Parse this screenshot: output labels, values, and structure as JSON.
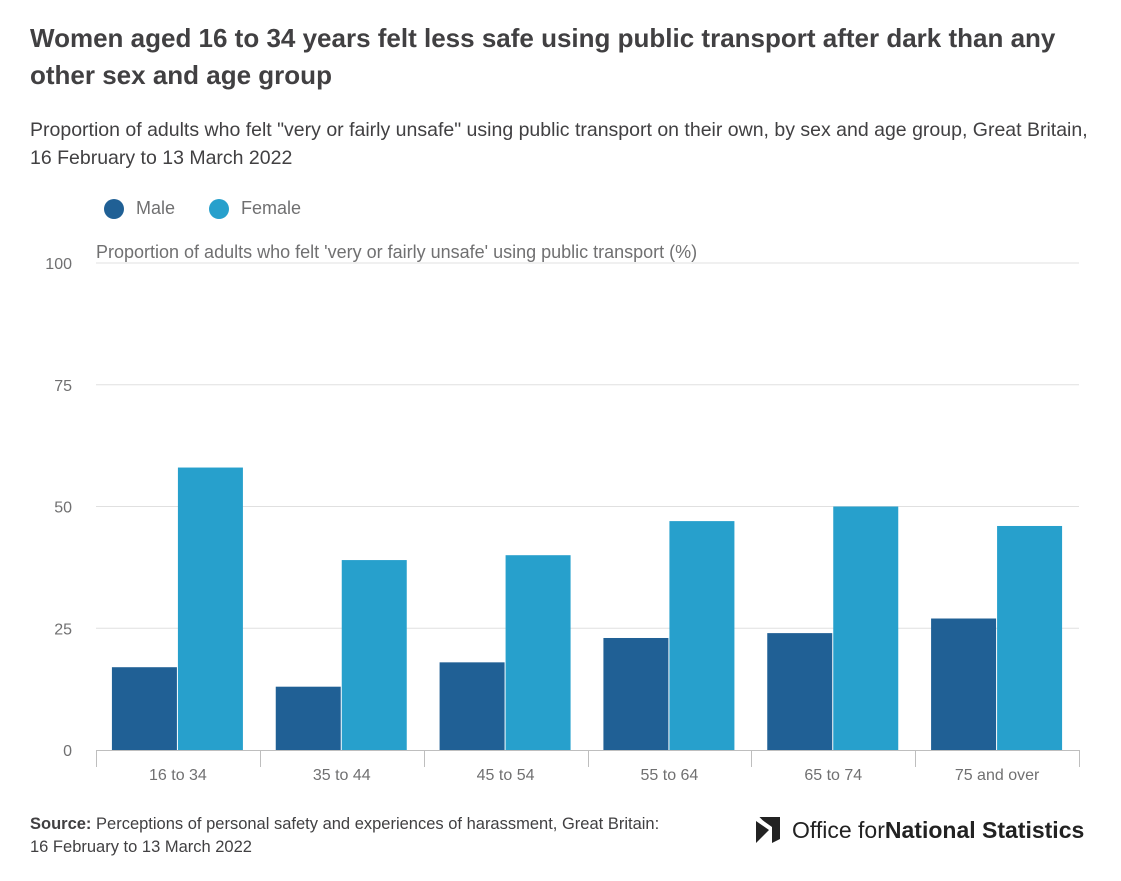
{
  "header": {
    "title": "Women aged 16 to 34 years felt less safe using public transport after dark than any other sex and age group",
    "subtitle": "Proportion of adults who felt \"very or fairly unsafe\" using public transport on their own, by sex and age group, Great Britain, 16 February to 13 March 2022"
  },
  "colors": {
    "male": "#206095",
    "female": "#27a0cc",
    "gridline": "#e0e0e0",
    "axis": "#bebebe"
  },
  "chart_data": {
    "type": "bar",
    "title": "Women aged 16 to 34 years felt less safe using public transport after dark than any other sex and age group",
    "subtitle": "Proportion of adults who felt \"very or fairly unsafe\" using public transport on their own, by sex and age group, Great Britain, 16 February to 13 March 2022",
    "xlabel": "",
    "ylabel": "Proportion of adults who felt 'very or fairly unsafe' using public transport (%)",
    "ylim": [
      0,
      100
    ],
    "yticks": [
      0,
      25,
      50,
      75,
      100
    ],
    "grid": true,
    "legend_position": "top-left",
    "categories": [
      "16 to 34",
      "35 to 44",
      "45 to 54",
      "55 to 64",
      "65 to 74",
      "75 and over"
    ],
    "series": [
      {
        "name": "Male",
        "color": "#206095",
        "values": [
          17,
          13,
          18,
          23,
          24,
          27
        ]
      },
      {
        "name": "Female",
        "color": "#27a0cc",
        "values": [
          58,
          39,
          40,
          47,
          50,
          46
        ]
      }
    ]
  },
  "footer": {
    "source_label": "Source:",
    "source_text": "Perceptions of personal safety and experiences of harassment, Great Britain: 16 February to 13 March 2022",
    "logo_text_regular": "Office for ",
    "logo_text_bold": "National Statistics"
  }
}
